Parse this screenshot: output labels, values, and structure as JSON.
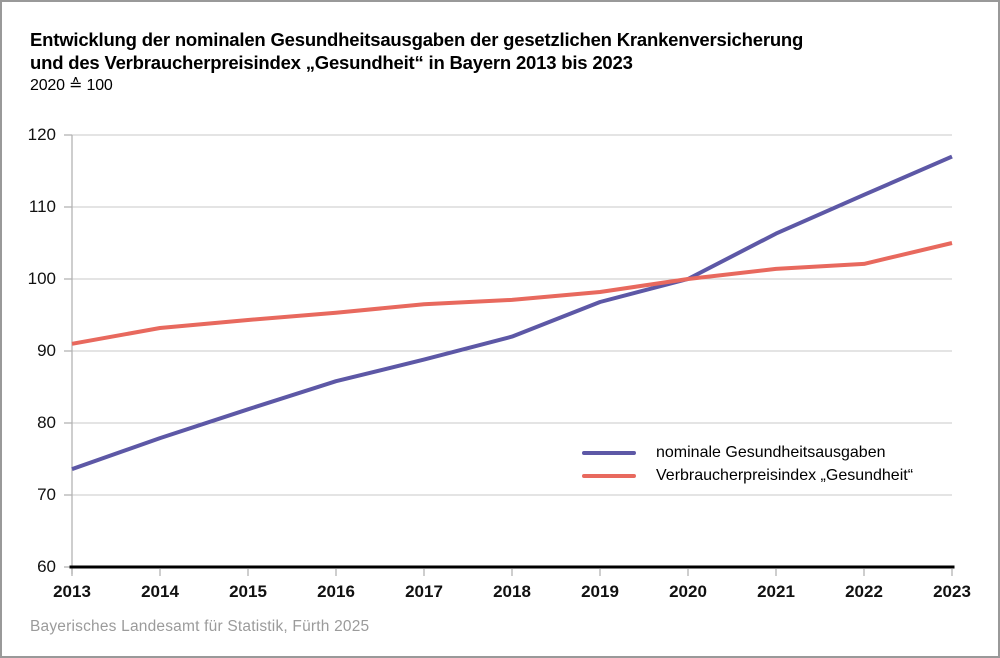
{
  "title": {
    "line1": "Entwicklung der nominalen Gesundheitsausgaben der gesetzlichen Krankenversicherung",
    "line2": "und des Verbraucherpreisindex „Gesundheit“ in Bayern 2013 bis 2023",
    "line3": "2020 ≙ 100"
  },
  "footer": {
    "source": "Bayerisches Landesamt für Statistik, Fürth 2025"
  },
  "chart_data": {
    "type": "line",
    "title": "Entwicklung der nominalen Gesundheitsausgaben der gesetzlichen Krankenversicherung und des Verbraucherpreisindex „Gesundheit“ in Bayern 2013 bis 2023",
    "subtitle": "2020 ≙ 100",
    "x": [
      2013,
      2014,
      2015,
      2016,
      2017,
      2018,
      2019,
      2020,
      2021,
      2022,
      2023
    ],
    "series": [
      {
        "name": "nominale Gesundheitsausgaben",
        "color": "#5D58A6",
        "values": [
          73.6,
          77.9,
          81.9,
          85.8,
          88.8,
          92.0,
          96.8,
          100.0,
          106.3,
          111.7,
          117.0
        ]
      },
      {
        "name": "Verbraucherpreisindex „Gesundheit“",
        "color": "#E8695E",
        "values": [
          91.0,
          93.2,
          94.3,
          95.3,
          96.5,
          97.1,
          98.2,
          100.0,
          101.4,
          102.1,
          105.0
        ]
      }
    ],
    "ylim": [
      60,
      120
    ],
    "y_ticks": [
      60,
      70,
      80,
      90,
      100,
      110,
      120
    ],
    "grid": "horizontal-only",
    "legend_position": "inside-bottom-right",
    "colors": {
      "gridline": "#c9c9c9",
      "y_axis": "#b3b3b3",
      "x_axis": "#000000",
      "tick": "#b3b3b3"
    }
  }
}
